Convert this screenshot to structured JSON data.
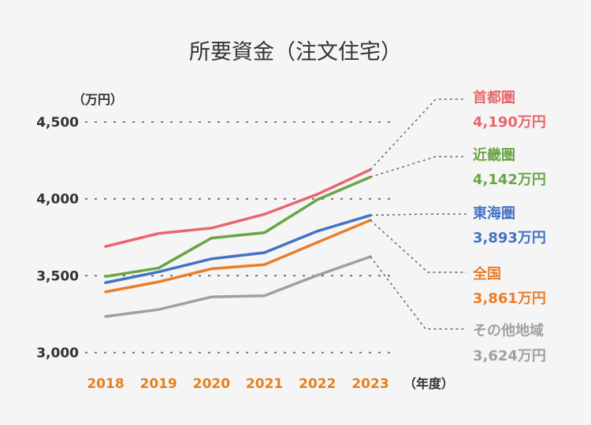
{
  "chart_data": {
    "type": "line",
    "title": "所要資金（注文住宅）",
    "ylabel": "（万円）",
    "xlabel": "（年度）",
    "categories": [
      "2018",
      "2019",
      "2020",
      "2021",
      "2022",
      "2023"
    ],
    "ylim": [
      3000,
      4500
    ],
    "yticks": [
      3000,
      3500,
      4000,
      4500
    ],
    "ytick_labels": [
      "3,000",
      "3,500",
      "4,000",
      "4,500"
    ],
    "grid": "dotted horizontal",
    "x_tick_color": "#e6801e",
    "series": [
      {
        "name": "首都圏",
        "values": [
          3690,
          3775,
          3810,
          3900,
          4030,
          4190
        ],
        "color": "#e8676e",
        "label": "4,190万円"
      },
      {
        "name": "近畿圏",
        "values": [
          3495,
          3550,
          3745,
          3780,
          3995,
          4142
        ],
        "color": "#6aa443",
        "label": "4,142万円"
      },
      {
        "name": "東海圏",
        "values": [
          3455,
          3525,
          3610,
          3650,
          3790,
          3893
        ],
        "color": "#4472c4",
        "label": "3,893万円"
      },
      {
        "name": "全国",
        "values": [
          3395,
          3460,
          3545,
          3572,
          3717,
          3861
        ],
        "color": "#ea7d28",
        "label": "3,861万円"
      },
      {
        "name": "その他地域",
        "values": [
          3235,
          3280,
          3362,
          3370,
          3503,
          3624
        ],
        "color": "#a0a0a0",
        "label": "3,624万円"
      }
    ]
  }
}
